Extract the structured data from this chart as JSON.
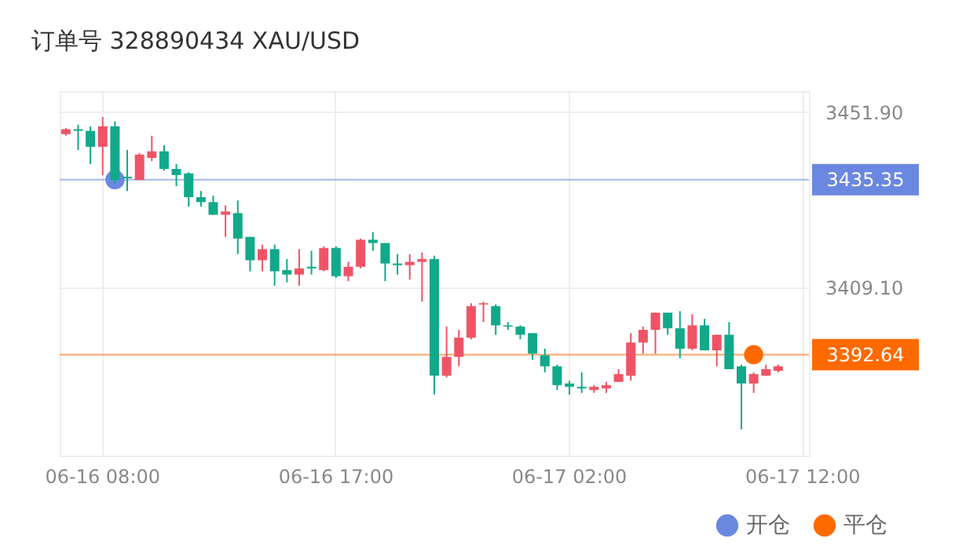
{
  "chart_data": {
    "type": "candlestick",
    "title": "订单号 328890434    XAU/USD",
    "categories": [
      null,
      null,
      null,
      "06-16 08:00",
      null,
      null,
      null,
      null,
      null,
      null,
      null,
      null,
      null,
      null,
      null,
      null,
      null,
      null,
      null,
      null,
      null,
      null,
      "06-16 17:00",
      null,
      null,
      null,
      null,
      null,
      null,
      null,
      null,
      null,
      null,
      null,
      null,
      null,
      null,
      null,
      null,
      null,
      null,
      "06-17 02:00",
      null,
      null,
      null,
      null,
      null,
      null,
      null,
      null,
      null,
      null,
      null,
      null,
      null,
      null,
      null,
      null,
      null,
      null,
      "06-17 12:00"
    ],
    "ohlc": [
      [
        3446.5,
        3448.0,
        3446.1,
        3447.7
      ],
      [
        3447.7,
        3448.8,
        3442.6,
        3447.3
      ],
      [
        3447.3,
        3448.4,
        3439.2,
        3443.4
      ],
      [
        3443.4,
        3450.7,
        3436.5,
        3448.4
      ],
      [
        3448.4,
        3449.6,
        3434.5,
        3435.3
      ],
      [
        3436.1,
        3442.6,
        3432.6,
        3435.7
      ],
      [
        3435.3,
        3441.9,
        3435.3,
        3441.5
      ],
      [
        3440.7,
        3446.1,
        3439.9,
        3442.3
      ],
      [
        3442.3,
        3443.8,
        3437.6,
        3438.0
      ],
      [
        3438.0,
        3439.2,
        3433.8,
        3436.5
      ],
      [
        3436.9,
        3437.2,
        3428.8,
        3431.1
      ],
      [
        3431.1,
        3432.6,
        3428.8,
        3429.9
      ],
      [
        3429.9,
        3431.5,
        3426.8,
        3426.8
      ],
      [
        3426.8,
        3429.1,
        3421.4,
        3427.6
      ],
      [
        3427.2,
        3430.3,
        3417.2,
        3421.0
      ],
      [
        3421.4,
        3421.4,
        3413.0,
        3415.7
      ],
      [
        3415.7,
        3419.5,
        3413.0,
        3418.4
      ],
      [
        3418.4,
        3419.5,
        3409.5,
        3413.0
      ],
      [
        3413.3,
        3416.0,
        3410.3,
        3412.2
      ],
      [
        3412.2,
        3418.4,
        3409.5,
        3413.7
      ],
      [
        3414.1,
        3418.0,
        3412.2,
        3413.7
      ],
      [
        3413.3,
        3419.1,
        3413.0,
        3418.7
      ],
      [
        3418.7,
        3419.1,
        3411.4,
        3411.8
      ],
      [
        3411.8,
        3415.3,
        3410.6,
        3414.1
      ],
      [
        3414.1,
        3421.0,
        3413.7,
        3420.7
      ],
      [
        3420.7,
        3422.6,
        3418.0,
        3419.9
      ],
      [
        3419.9,
        3419.9,
        3410.6,
        3414.9
      ],
      [
        3414.9,
        3417.2,
        3412.2,
        3414.5
      ],
      [
        3414.5,
        3417.2,
        3411.0,
        3415.3
      ],
      [
        3415.3,
        3417.6,
        3405.6,
        3416.0
      ],
      [
        3416.0,
        3416.8,
        3382.9,
        3387.5
      ],
      [
        3387.5,
        3399.5,
        3387.1,
        3392.1
      ],
      [
        3392.1,
        3398.7,
        3389.8,
        3396.8
      ],
      [
        3396.8,
        3405.2,
        3396.4,
        3404.5
      ],
      [
        3404.9,
        3405.6,
        3400.6,
        3405.2
      ],
      [
        3404.5,
        3404.9,
        3397.5,
        3399.8
      ],
      [
        3399.8,
        3400.6,
        3398.7,
        3399.5
      ],
      [
        3399.5,
        3399.8,
        3396.4,
        3397.5
      ],
      [
        3397.9,
        3397.9,
        3391.4,
        3392.9
      ],
      [
        3392.5,
        3394.1,
        3388.3,
        3389.8
      ],
      [
        3389.8,
        3390.2,
        3384.0,
        3385.2
      ],
      [
        3385.6,
        3386.3,
        3382.9,
        3384.8
      ],
      [
        3384.8,
        3388.3,
        3383.3,
        3384.4
      ],
      [
        3384.0,
        3385.2,
        3383.3,
        3384.8
      ],
      [
        3384.4,
        3386.0,
        3383.3,
        3385.2
      ],
      [
        3386.0,
        3389.1,
        3386.0,
        3387.9
      ],
      [
        3387.5,
        3397.9,
        3386.3,
        3395.6
      ],
      [
        3395.6,
        3399.5,
        3392.9,
        3398.7
      ],
      [
        3398.7,
        3402.9,
        3392.9,
        3402.9
      ],
      [
        3402.9,
        3402.9,
        3397.5,
        3399.1
      ],
      [
        3399.1,
        3403.3,
        3391.8,
        3394.1
      ],
      [
        3394.1,
        3402.5,
        3393.7,
        3399.8
      ],
      [
        3399.8,
        3401.4,
        3393.7,
        3393.7
      ],
      [
        3393.7,
        3397.5,
        3389.8,
        3397.5
      ],
      [
        3397.5,
        3400.6,
        3389.1,
        3389.1
      ],
      [
        3389.8,
        3390.2,
        3374.4,
        3385.6
      ],
      [
        3385.6,
        3388.3,
        3383.3,
        3387.9
      ],
      [
        3387.5,
        3390.2,
        3387.5,
        3389.1
      ],
      [
        3388.7,
        3390.2,
        3388.3,
        3389.8
      ],
      null,
      null
    ],
    "colors": [
      "#ef5466",
      "#11a98a",
      "#11a98a",
      "#ef5466",
      "#11a98a",
      "#11a98a",
      "#ef5466",
      "#ef5466",
      "#11a98a",
      "#11a98a",
      "#11a98a",
      "#11a98a",
      "#11a98a",
      "#ef5466",
      "#11a98a",
      "#11a98a",
      "#ef5466",
      "#11a98a",
      "#11a98a",
      "#ef5466",
      "#11a98a",
      "#ef5466",
      "#11a98a",
      "#ef5466",
      "#ef5466",
      "#11a98a",
      "#11a98a",
      "#11a98a",
      "#ef5466",
      "#ef5466",
      "#11a98a",
      "#ef5466",
      "#ef5466",
      "#ef5466",
      "#ef5466",
      "#11a98a",
      "#11a98a",
      "#11a98a",
      "#11a98a",
      "#11a98a",
      "#11a98a",
      "#11a98a",
      "#11a98a",
      "#ef5466",
      "#ef5466",
      "#ef5466",
      "#ef5466",
      "#ef5466",
      "#ef5466",
      "#11a98a",
      "#11a98a",
      "#ef5466",
      "#11a98a",
      "#ef5466",
      "#11a98a",
      "#11a98a",
      "#ef5466",
      "#ef5466",
      "#ef5466",
      null,
      null
    ],
    "series": [
      {
        "type": "scatter",
        "name": "开仓",
        "color": "#6b88e0",
        "values": [
          null,
          null,
          null,
          null,
          3435.35,
          null,
          null,
          null,
          null,
          null,
          null,
          null,
          null,
          null,
          null,
          null,
          null,
          null,
          null,
          null,
          null,
          null,
          null,
          null,
          null,
          null,
          null,
          null,
          null,
          null,
          null,
          null,
          null,
          null,
          null,
          null,
          null,
          null,
          null,
          null,
          null,
          null,
          null,
          null,
          null,
          null,
          null,
          null,
          null,
          null,
          null,
          null,
          null,
          null,
          null,
          null,
          null,
          null,
          null,
          null,
          null
        ]
      },
      {
        "type": "scatter",
        "name": "平仓",
        "color": "#ff6a00",
        "values": [
          null,
          null,
          null,
          null,
          null,
          null,
          null,
          null,
          null,
          null,
          null,
          null,
          null,
          null,
          null,
          null,
          null,
          null,
          null,
          null,
          null,
          null,
          null,
          null,
          null,
          null,
          null,
          null,
          null,
          null,
          null,
          null,
          null,
          null,
          null,
          null,
          null,
          null,
          null,
          null,
          null,
          null,
          null,
          null,
          null,
          null,
          null,
          null,
          null,
          null,
          null,
          null,
          null,
          null,
          null,
          null,
          3392.64,
          null,
          null,
          null,
          null
        ]
      }
    ],
    "ref_lines": [
      {
        "axis": "y",
        "value": 3435.35,
        "label": "3435.35",
        "color": "#6b88e0"
      },
      {
        "axis": "y",
        "value": 3392.64,
        "label": "3392.64",
        "color": "#ff6a00"
      }
    ],
    "ylim": [
      3368,
      3457
    ],
    "yticks": [
      {
        "value": 3451.9,
        "label": "3451.90"
      },
      {
        "value": 3409.1,
        "label": "3409.10"
      }
    ],
    "grid": true,
    "legend": "bottom right",
    "marker": "circle"
  }
}
